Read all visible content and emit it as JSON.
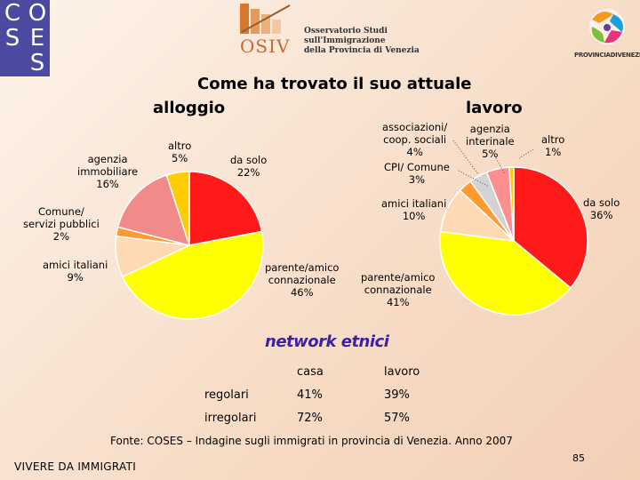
{
  "logos": {
    "coses_letters": [
      "C",
      "O",
      "S",
      "E",
      "S"
    ],
    "osiv_mark": "OSIV",
    "osiv_name_lines": [
      "Osservatorio Studi",
      "sull'Immigrazione",
      "della Provincia di Venezia"
    ],
    "provincia_name": "PROVINCIADIVENEZIA"
  },
  "title": {
    "part1": "Come ha trovato il suo attuale",
    "part2": "alloggio",
    "part3": "lavoro"
  },
  "colors": {
    "da_solo": "#ff1a1a",
    "parente": "#ffff00",
    "amici": "#ffd9b3",
    "comune": "#ff9a33",
    "agenzia_immobiliare": "#f28a8a",
    "altro": "#ffcc00",
    "associazioni": "#d3d3d3",
    "agenzia_interinale": "#ff8f8f"
  },
  "chart_data": [
    {
      "type": "pie",
      "title": "alloggio",
      "slices": [
        {
          "key": "da_solo",
          "lines": [
            "da solo",
            "22%"
          ],
          "value": 22
        },
        {
          "key": "parente",
          "lines": [
            "parente/amico",
            "connazionale",
            "46%"
          ],
          "value": 46
        },
        {
          "key": "amici",
          "lines": [
            "amici italiani",
            "9%"
          ],
          "value": 9
        },
        {
          "key": "comune",
          "lines": [
            "Comune/",
            "servizi pubblici",
            "2%"
          ],
          "value": 2
        },
        {
          "key": "agenzia_immobiliare",
          "lines": [
            "agenzia",
            "immobiliare",
            "16%"
          ],
          "value": 16
        },
        {
          "key": "altro",
          "lines": [
            "altro",
            "5%"
          ],
          "value": 5
        }
      ]
    },
    {
      "type": "pie",
      "title": "lavoro",
      "slices": [
        {
          "key": "da_solo",
          "lines": [
            "da solo",
            "36%"
          ],
          "value": 36
        },
        {
          "key": "parente",
          "lines": [
            "parente/amico",
            "connazionale",
            "41%"
          ],
          "value": 41
        },
        {
          "key": "amici",
          "lines": [
            "amici italiani",
            "10%"
          ],
          "value": 10
        },
        {
          "key": "comune",
          "lines": [
            "CPI/ Comune",
            "3%"
          ],
          "value": 3
        },
        {
          "key": "associazioni",
          "lines": [
            "associazioni/",
            "coop. sociali",
            "4%"
          ],
          "value": 4
        },
        {
          "key": "agenzia_interinale",
          "lines": [
            "agenzia",
            "interinale",
            "5%"
          ],
          "value": 5
        },
        {
          "key": "altro",
          "lines": [
            "altro",
            "1%"
          ],
          "value": 1
        }
      ]
    }
  ],
  "network": {
    "title": "network etnici",
    "headers": [
      "",
      "casa",
      "lavoro"
    ],
    "rows": [
      {
        "label": "regolari",
        "casa": "41%",
        "lavoro": "39%"
      },
      {
        "label": "irregolari",
        "casa": "72%",
        "lavoro": "57%"
      }
    ]
  },
  "source": "Fonte: COSES – Indagine sugli immigrati in provincia di Venezia. Anno 2007",
  "footer": "VIVERE DA IMMIGRATI",
  "page_number": "85"
}
